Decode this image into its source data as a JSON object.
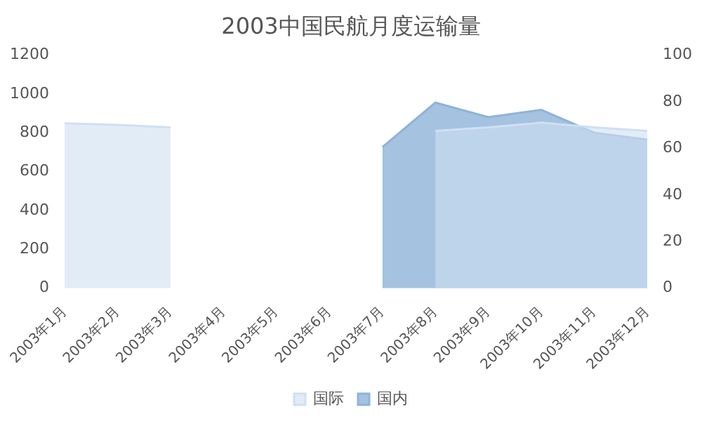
{
  "chart_data": {
    "type": "area",
    "title": "2003中国民航月度运输量",
    "categories": [
      "2003年1月",
      "2003年2月",
      "2003年3月",
      "2003年4月",
      "2003年5月",
      "2003年6月",
      "2003年7月",
      "2003年8月",
      "2003年9月",
      "2003年10月",
      "2003年11月",
      "2003年12月"
    ],
    "series": [
      {
        "name": "国内",
        "color": "#8fb3d9",
        "values": [
          null,
          null,
          null,
          null,
          null,
          null,
          726,
          955,
          880,
          918,
          800,
          765
        ]
      },
      {
        "name": "国际",
        "color": "#cfe0f2",
        "axis": "y2",
        "values": [
          70.7,
          70,
          69,
          null,
          null,
          null,
          null,
          67.5,
          69,
          71,
          69,
          67.5
        ]
      }
    ],
    "ylim": [
      0,
      1200
    ],
    "yticks": [
      0,
      200,
      400,
      600,
      800,
      1000,
      1200
    ],
    "y2lim": [
      0,
      100
    ],
    "y2ticks": [
      0,
      20,
      40,
      60,
      80,
      100
    ],
    "grid": false,
    "legend": "bottom"
  }
}
